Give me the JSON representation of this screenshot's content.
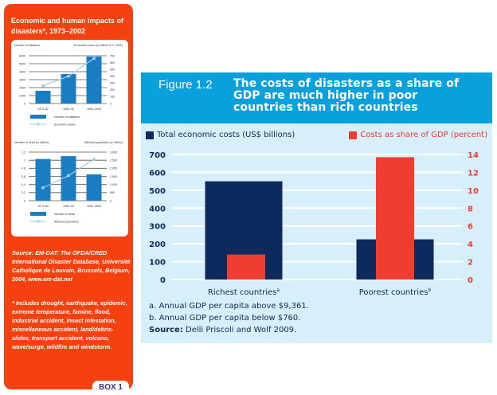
{
  "box": {
    "title": "Economic and human impacts of disasters*, 1973–2002",
    "source": "Source: EM-DAT: The OFDA/CRED International Disaster Database, Université Catholique de Louvain, Brussels, Belgium, 2004, www.em-dat.net",
    "note": "* Includes drought, earthquake, epidemic, extreme temperature, famine, flood, industrial accident, insect infestation, miscellaneous accident, land/debris-slides, transport accident, volcano, wave/surge, wildfire and windstorm.",
    "tab_label": "BOX 1"
  },
  "figure": {
    "number": "Figure 1.2",
    "title": "The costs of disasters as a share of GDP are much higher in poor countries than rich countries",
    "notes": [
      "a. Annual GDP per capita above $9,361.",
      "b. Annual GDP per capita below $760."
    ],
    "source_label": "Source:",
    "source_text": " Delli Priscoli and Wolf 2009."
  },
  "colors": {
    "box_orange": "#f4410f",
    "figure_header": "#0aa0dc",
    "figure_bg": "#d6effa",
    "navy": "#0e2a5c",
    "red": "#ee3e32",
    "mini_bar": "#1a7cc1",
    "mini_line": "#9fcdeb"
  },
  "chart_data": [
    {
      "type": "bar",
      "title": "The costs of disasters as a share of GDP are much higher in poor countries than rich countries",
      "categories": [
        "Richest countries",
        "Poorest countries"
      ],
      "category_superscripts": [
        "a",
        "b"
      ],
      "series": [
        {
          "name": "Total economic costs (US$ billions)",
          "axis": "left",
          "values": [
            550,
            225
          ]
        },
        {
          "name": "Costs as share of GDP (percent)",
          "axis": "right",
          "values": [
            2.8,
            13.7
          ]
        }
      ],
      "ylim": [
        0,
        700
      ],
      "yticks": [
        0,
        100,
        200,
        300,
        400,
        500,
        600,
        700
      ],
      "y2lim": [
        0,
        14
      ],
      "y2ticks": [
        0,
        2,
        4,
        6,
        8,
        10,
        12,
        14
      ],
      "xlabel": "",
      "ylabel": "",
      "grid": true,
      "legend": "top"
    },
    {
      "type": "bar",
      "title": "Number of disasters and economic losses",
      "categories": [
        "1973–82",
        "1983–92",
        "1993–2002"
      ],
      "series": [
        {
          "name": "Number of disasters",
          "kind": "bar",
          "axis": "left",
          "values": [
            1600,
            3700,
            5900
          ]
        },
        {
          "name": "Economic losses",
          "kind": "line",
          "axis": "right",
          "values": [
            260,
            400,
            660
          ]
        }
      ],
      "ylabel": "Number of disasters",
      "y2label": "Economic losses (in million U.S. 2001)",
      "ylim": [
        0,
        6000
      ],
      "yticks": [
        0,
        1000,
        2000,
        3000,
        4000,
        5000,
        6000
      ],
      "y2lim": [
        0,
        700
      ],
      "y2ticks": [
        0,
        100,
        200,
        300,
        400,
        500,
        600,
        700
      ],
      "grid": true,
      "legend": "bottom"
    },
    {
      "type": "bar",
      "title": "Number of dead and affected population",
      "categories": [
        "1973–82",
        "1983–92",
        "1993–2002"
      ],
      "series": [
        {
          "name": "Number of dead",
          "kind": "bar",
          "axis": "left",
          "values": [
            1.03,
            1.1,
            0.65
          ]
        },
        {
          "name": "Affected population",
          "kind": "line",
          "axis": "right",
          "values": [
            800,
            1550,
            2550
          ]
        }
      ],
      "ylabel": "Number of dead (in million)",
      "y2label": "Affected population (in million)",
      "ylim": [
        0,
        1.2
      ],
      "yticks": [
        0,
        0.2,
        0.4,
        0.6,
        0.8,
        1,
        1.2
      ],
      "ytick_labels": [
        "0",
        "0.2",
        "0.4",
        "0.6",
        "0.8",
        "1",
        "1.2"
      ],
      "y2lim": [
        0,
        3000
      ],
      "y2ticks": [
        0,
        500,
        1000,
        1500,
        2000,
        2500,
        3000
      ],
      "y2tick_labels": [
        "0",
        "500",
        "1 000",
        "1 500",
        "2 000",
        "2 500",
        "3 000"
      ],
      "grid": true,
      "legend": "bottom"
    }
  ]
}
